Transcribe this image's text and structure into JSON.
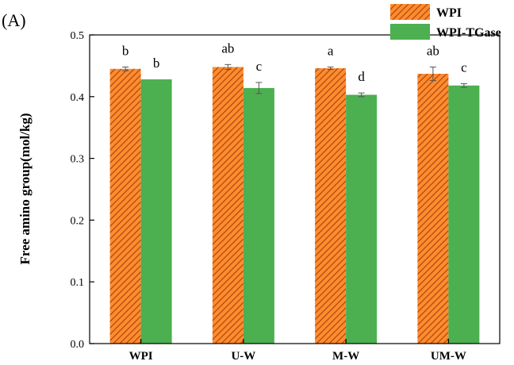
{
  "panel_label": "(A)",
  "chart_data": {
    "type": "bar",
    "title": "",
    "xlabel": "",
    "ylabel": "Free amino group(mol/kg)",
    "ylim": [
      0.0,
      0.5
    ],
    "yticks": [
      0.0,
      0.1,
      0.2,
      0.3,
      0.4,
      0.5
    ],
    "ytick_labels": [
      "0.0",
      "0.1",
      "0.2",
      "0.3",
      "0.4",
      "0.5"
    ],
    "categories": [
      "WPI",
      "U-W",
      "M-W",
      "UM-W"
    ],
    "legend_position": "top-right",
    "series": [
      {
        "name": "WPI",
        "color": "#ff8c2e",
        "hatch": "diagonal",
        "hatch_color": "#b04a10",
        "values": [
          0.445,
          0.448,
          0.446,
          0.437
        ],
        "errors": [
          0.003,
          0.004,
          0.002,
          0.011
        ],
        "significance": [
          "b",
          "ab",
          "a",
          "ab"
        ]
      },
      {
        "name": "WPI-TGase",
        "color": "#4caf50",
        "hatch": "none",
        "values": [
          0.428,
          0.414,
          0.403,
          0.418
        ],
        "errors": [
          0.0,
          0.009,
          0.003,
          0.003
        ],
        "significance": [
          "b",
          "c",
          "d",
          "c"
        ]
      }
    ]
  }
}
